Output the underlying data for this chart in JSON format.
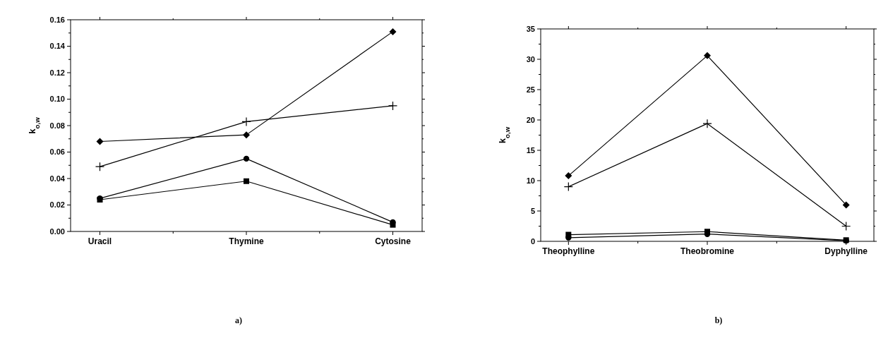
{
  "chart_data": [
    {
      "type": "line",
      "ylabel": "k$_{o,w}$",
      "categories": [
        "Uracil",
        "Thymine",
        "Cytosine"
      ],
      "ylim": [
        0,
        0.16
      ],
      "yticks": [
        {
          "value": 0,
          "label": "0.00"
        },
        {
          "value": 0.02,
          "label": "0.02"
        },
        {
          "value": 0.04,
          "label": "0.04"
        },
        {
          "value": 0.06,
          "label": "0.06"
        },
        {
          "value": 0.08,
          "label": "0.08"
        },
        {
          "value": 0.1,
          "label": "0.10"
        },
        {
          "value": 0.12,
          "label": "0.12"
        },
        {
          "value": 0.14,
          "label": "0.14"
        },
        {
          "value": 0.16,
          "label": "0.16"
        }
      ],
      "line_style": "solid",
      "annotations": [
        "a)"
      ],
      "series": [
        {
          "color": "#000000",
          "marker": "diamond",
          "values": [
            0.068,
            0.073,
            0.151
          ]
        },
        {
          "color": "#000000",
          "marker": "cross",
          "values": [
            0.049,
            0.083,
            0.095
          ]
        },
        {
          "color": "#000000",
          "marker": "circle",
          "values": [
            0.025,
            0.055,
            0.007
          ]
        },
        {
          "color": "#000000",
          "marker": "square",
          "values": [
            0.024,
            0.038,
            0.005
          ]
        }
      ]
    },
    {
      "type": "line",
      "ylabel": "k$_{o,w}$",
      "categories": [
        "Theophylline",
        "Theobromine",
        "Dyphylline"
      ],
      "ylim": [
        0,
        35
      ],
      "yticks": [
        0,
        5,
        10,
        15,
        20,
        25,
        30,
        35
      ],
      "line_style": "solid",
      "annotations": [
        "b)"
      ],
      "series": [
        {
          "color": "#000000",
          "marker": "diamond",
          "values": [
            10.8,
            30.6,
            6.0
          ]
        },
        {
          "color": "#000000",
          "marker": "cross",
          "values": [
            9.0,
            19.4,
            2.5
          ]
        },
        {
          "color": "#000000",
          "marker": "square",
          "values": [
            1.1,
            1.6,
            0.2
          ]
        },
        {
          "color": "#000000",
          "marker": "circle",
          "values": [
            0.6,
            1.2,
            0.1
          ]
        }
      ]
    }
  ]
}
